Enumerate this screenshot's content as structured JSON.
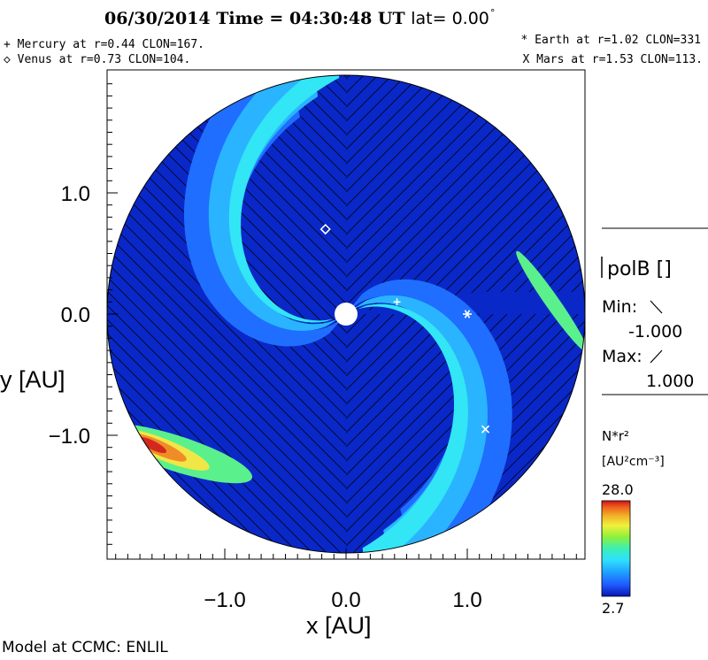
{
  "header": {
    "title": "06/30/2014 Time = 04:30:48 UT",
    "lat_label": "lat= 0.00",
    "lat_degree": "°"
  },
  "planets": {
    "mercury": {
      "text": "+ Mercury at r=0.44 CLON=167.",
      "marker": "+",
      "r": 0.44,
      "clon": 167
    },
    "venus": {
      "text": "◇ Venus at r=0.73 CLON=104.",
      "marker": "diamond",
      "r": 0.73,
      "clon": 104
    },
    "earth": {
      "text": "* Earth at  r=1.02 CLON=331",
      "marker": "*",
      "r": 1.02,
      "clon": 331
    },
    "mars": {
      "text": "X Mars at r=1.53 CLON=113.",
      "marker": "X",
      "r": 1.53,
      "clon": 113
    }
  },
  "legend": {
    "polarity_label": "polB []",
    "min_label": "Min:",
    "min_value": "-1.000",
    "max_label": "Max:",
    "max_value": "1.000"
  },
  "colorbar": {
    "title": "N*r²",
    "unit": "[AU²cm⁻³]",
    "max_label": "28.0",
    "min_label": "2.7",
    "colors": [
      "#0a14b4",
      "#1f5aff",
      "#1fa0ff",
      "#2fe0ff",
      "#3cf0b4",
      "#8cf03c",
      "#f0f03c",
      "#f0b428",
      "#f0641e",
      "#d21414"
    ]
  },
  "footer": "Model at CCMC: ENLIL",
  "chart_data": {
    "type": "heatmap",
    "title": "06/30/2014 Time = 04:30:48 UT",
    "xlabel": "x [AU]",
    "ylabel": "y [AU]",
    "xlim": [
      -1.9,
      1.9
    ],
    "ylim": [
      -1.9,
      1.9
    ],
    "x_ticks": [
      -1.0,
      0.0,
      1.0
    ],
    "x_tick_labels": [
      "−1.0",
      "0.0",
      "1.0"
    ],
    "y_ticks": [
      1.0,
      0.0,
      -1.0
    ],
    "y_tick_labels": [
      "1.0",
      "0.0",
      "−1.0"
    ],
    "domain_radius": 1.9,
    "sun_radius": 0.1,
    "value_range": [
      2.7,
      28.0
    ],
    "colors": {
      "background": "#0a28c8",
      "band_mid": "#1f6eff",
      "band_light": "#2ab4ff",
      "band_cyan": "#32e6f5",
      "band_green": "#5af08c",
      "hot_yellow": "#f0e646",
      "hot_orange": "#f08c28",
      "hot_red": "#d2281e"
    },
    "markers": [
      {
        "name": "Mercury",
        "symbol": "+",
        "x": 0.42,
        "y": 0.1
      },
      {
        "name": "Venus",
        "symbol": "diamond",
        "x": -0.17,
        "y": 0.7
      },
      {
        "name": "Earth",
        "symbol": "*",
        "x": 1.0,
        "y": 0.0
      },
      {
        "name": "Mars",
        "symbol": "x",
        "x": 1.15,
        "y": -0.95
      }
    ]
  }
}
